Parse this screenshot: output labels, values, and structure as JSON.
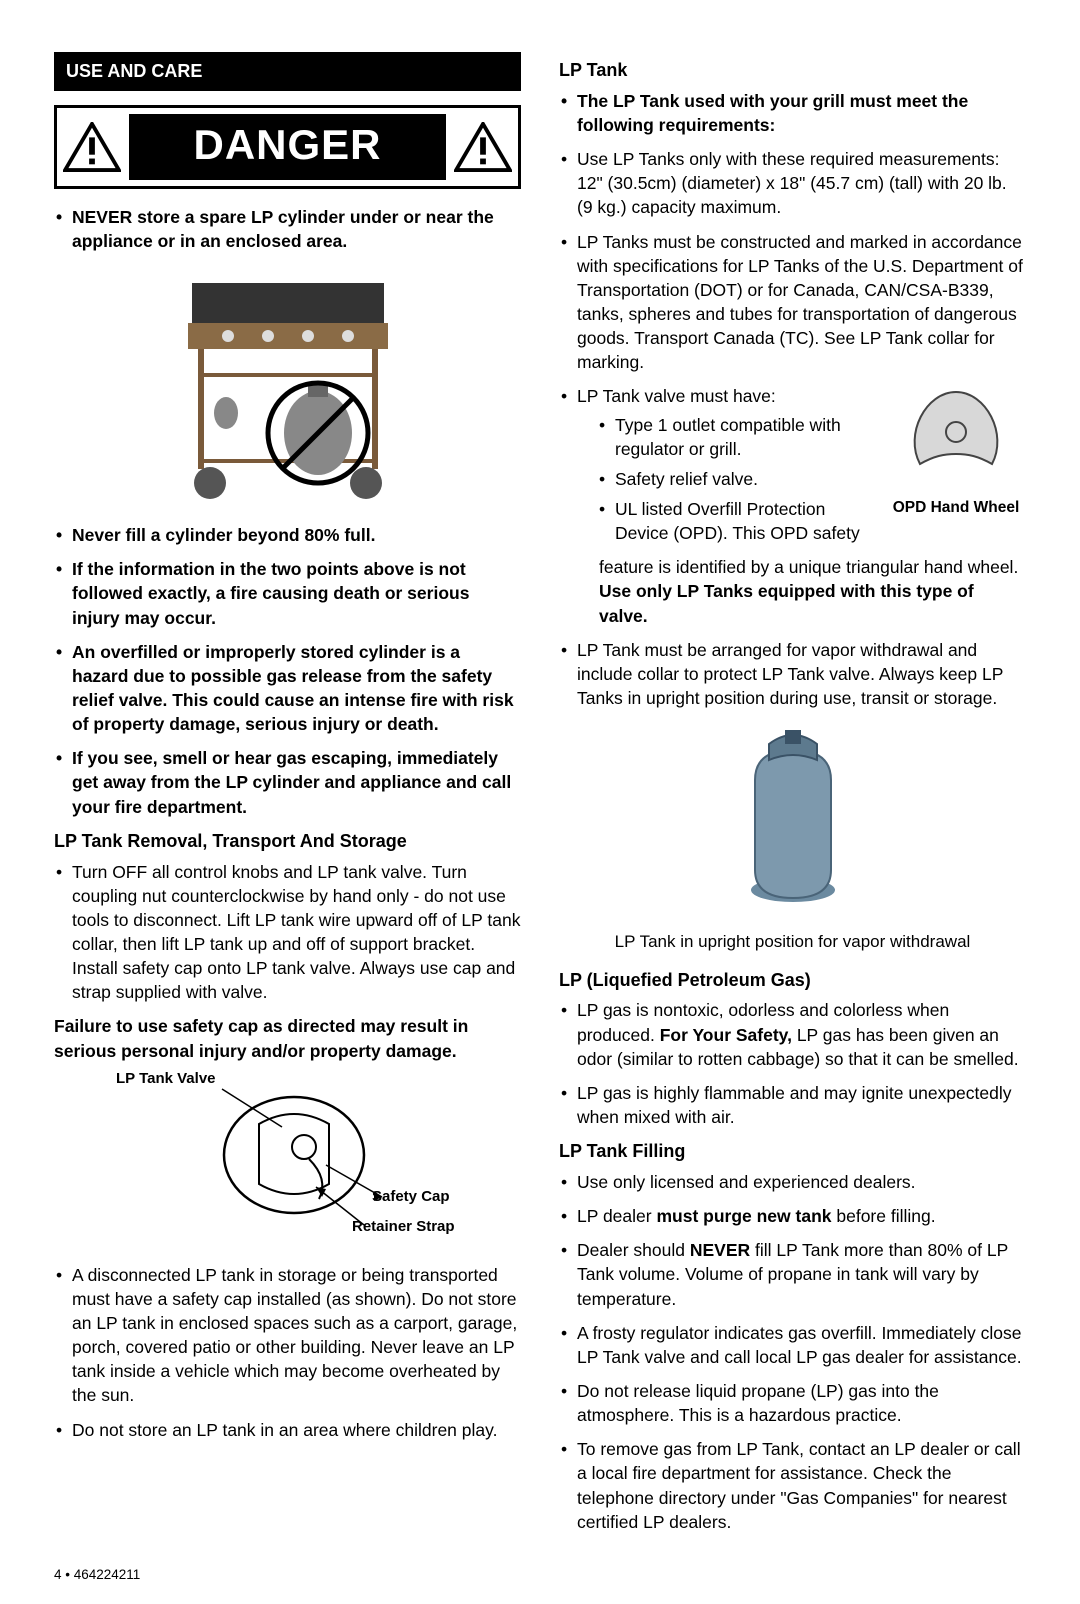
{
  "section_title": "USE AND CARE",
  "danger_label": "DANGER",
  "left": {
    "danger_bullets": [
      "NEVER store a spare LP cylinder under or near the appliance or in an enclosed area.",
      "Never fill a cylinder beyond 80% full.",
      "If the information in the two points above is not followed exactly, a fire causing death or serious injury may occur.",
      "An overfilled or improperly stored cylinder is a hazard due to possible gas release from the safety relief valve.  This could cause an intense fire with risk of property damage, serious injury or death.",
      "If you see, smell or hear gas escaping, immediately get away from the LP cylinder and appliance and call your fire department."
    ],
    "removal_heading": "LP Tank Removal, Transport And Storage",
    "removal_bullets": [
      "Turn OFF all control knobs and LP tank valve. Turn coupling nut counterclockwise by hand only - do not use tools to disconnect. Lift LP tank wire upward off of LP tank collar, then lift LP tank up and off of support bracket. Install safety cap onto LP tank valve. Always use cap and strap supplied with valve."
    ],
    "failure_text": "Failure to use safety cap as directed may result in serious personal injury and/or property damage.",
    "valve_labels": {
      "valve": "LP Tank Valve",
      "cap": "Safety Cap",
      "strap": "Retainer Strap"
    },
    "storage_bullets": [
      "A disconnected LP tank in storage or being transported must have a safety cap installed (as shown). Do not store an LP tank in enclosed spaces such as a carport, garage, porch, covered patio or other building. Never leave an LP tank inside a vehicle which may become overheated by the sun.",
      "Do not store an LP tank in an area where children play."
    ]
  },
  "right": {
    "lp_tank_heading": "LP Tank",
    "req_intro": "The LP Tank used with your grill must meet the following requirements:",
    "req_bullets": [
      "Use LP Tanks only with these required measurements: 12\" (30.5cm) (diameter) x 18\" (45.7 cm) (tall) with 20 lb. (9 kg.) capacity maximum.",
      "LP Tanks must be constructed and marked in accordance with specifications for LP Tanks of the U.S. Department of Transportation (DOT) or for Canada, CAN/CSA-B339, tanks, spheres and tubes for transportation of dangerous goods. Transport Canada (TC). See LP Tank collar for marking."
    ],
    "valve_intro": "LP Tank valve must have:",
    "valve_sub": [
      "Type 1 outlet compatible with regulator or grill.",
      "Safety relief valve.",
      "UL listed Overfill Protection Device (OPD). This OPD safety"
    ],
    "opd_caption": "OPD Hand Wheel",
    "opd_tail_plain": "feature is identified by a unique triangular hand wheel. ",
    "opd_tail_bold": "Use only LP Tanks equipped with this type of valve.",
    "vapor_bullet": "LP Tank must be arranged for vapor withdrawal and include collar to protect LP Tank valve. Always keep LP Tanks in upright position during use, transit or storage.",
    "tank_fig_caption": "LP Tank in upright position for vapor withdrawal",
    "lpg_heading": "LP (Liquefied Petroleum Gas)",
    "lpg_bullets_pre": "LP gas is nontoxic, odorless and colorless when produced. ",
    "lpg_bullets_bold": "For Your Safety,",
    "lpg_bullets_post": " LP gas has been given an odor (similar to rotten cabbage) so that it can be smelled.",
    "lpg_bullet2": "LP gas is highly flammable and may ignite unexpectedly when mixed with air.",
    "fill_heading": "LP Tank Filling",
    "fill_bullets": [
      "Use only licensed and experienced dealers.",
      "LP dealer <b>must purge new tank</b> before filling.",
      "Dealer should <b>NEVER</b> fill LP Tank more than 80% of LP Tank volume. Volume of propane in tank will vary by temperature.",
      "A frosty regulator indicates gas overfill. Immediately close LP Tank valve and call local LP gas dealer for assistance.",
      "Do not release liquid propane (LP) gas into the atmosphere. This is a hazardous practice.",
      "To remove gas from LP Tank, contact an LP dealer or call a local fire department for assistance. Check the telephone directory under \"Gas Companies\" for nearest certified LP dealers."
    ]
  },
  "footer": "4 • 464224211"
}
